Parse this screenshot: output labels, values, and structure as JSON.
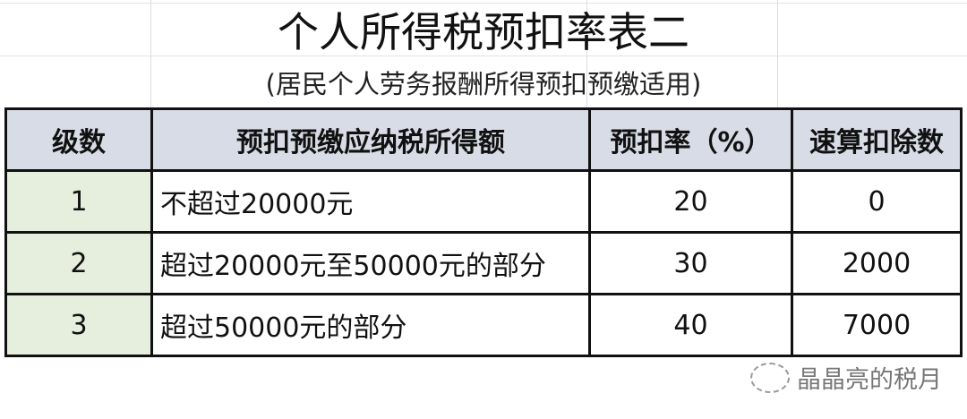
{
  "title": "个人所得税预扣率表二",
  "subtitle": "(居民个人劳务报酬所得预扣预缴适用)",
  "table": {
    "headers": [
      "级数",
      "预扣预缴应纳税所得额",
      "预扣率（%）",
      "速算扣除数"
    ],
    "rows": [
      [
        "1",
        "不超过20000元",
        "20",
        "0"
      ],
      [
        "2",
        "超过20000元至50000元的部分",
        "30",
        "2000"
      ],
      [
        "3",
        "超过50000元的部分",
        "40",
        "7000"
      ]
    ]
  },
  "watermark": {
    "icon": "wechat-icon",
    "text": "晶晶亮的税月"
  },
  "colors": {
    "header_bg": "#d8dce6",
    "level_bg": "#e6eedd"
  }
}
